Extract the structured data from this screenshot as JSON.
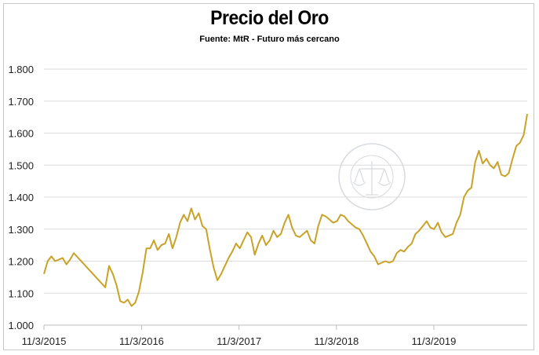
{
  "chart_data": {
    "type": "line",
    "title": "Precio del Oro",
    "subtitle": "Fuente: MtR - Futuro más cercano",
    "xlabel": "",
    "ylabel": "",
    "ylim": [
      1000,
      1800
    ],
    "yticks": [
      1000,
      1100,
      1200,
      1300,
      1400,
      1500,
      1600,
      1700,
      1800
    ],
    "ytick_labels": [
      "1.000",
      "1.100",
      "1.200",
      "1.300",
      "1.400",
      "1.500",
      "1.600",
      "1.700",
      "1.800"
    ],
    "xticks": [
      "2015-03-11",
      "2016-03-11",
      "2017-03-11",
      "2018-03-11",
      "2019-03-11"
    ],
    "xtick_labels": [
      "11/3/2015",
      "11/3/2016",
      "11/3/2017",
      "11/3/2018",
      "11/3/2019"
    ],
    "xlim": [
      "2015-03-11",
      "2020-02-24"
    ],
    "grid": "horizontal",
    "line_color": "#c9a227",
    "series": [
      {
        "x": [
          "2015-03-11",
          "2015-03-25",
          "2015-04-08",
          "2015-04-22",
          "2015-05-06",
          "2015-05-20",
          "2015-06-03",
          "2015-06-17",
          "2015-07-01",
          "2015-10-27",
          "2015-11-10",
          "2015-11-24",
          "2015-12-08",
          "2015-12-22",
          "2016-01-05",
          "2016-01-19",
          "2016-02-02",
          "2016-02-16",
          "2016-03-01",
          "2016-03-15",
          "2016-03-29",
          "2016-04-12",
          "2016-04-26",
          "2016-05-10",
          "2016-05-24",
          "2016-06-07",
          "2016-06-21",
          "2016-07-05",
          "2016-07-19",
          "2016-08-02",
          "2016-08-16",
          "2016-08-30",
          "2016-09-13",
          "2016-09-27",
          "2016-10-11",
          "2016-10-25",
          "2016-11-08",
          "2016-11-22",
          "2016-12-06",
          "2016-12-20",
          "2017-01-03",
          "2017-01-17",
          "2017-01-31",
          "2017-02-14",
          "2017-02-28",
          "2017-03-14",
          "2017-03-28",
          "2017-04-11",
          "2017-04-25",
          "2017-05-09",
          "2017-05-23",
          "2017-06-06",
          "2017-06-20",
          "2017-07-04",
          "2017-07-18",
          "2017-08-01",
          "2017-08-15",
          "2017-08-29",
          "2017-09-12",
          "2017-09-26",
          "2017-10-10",
          "2017-10-24",
          "2017-11-07",
          "2017-11-21",
          "2017-12-05",
          "2017-12-19",
          "2018-01-02",
          "2018-01-16",
          "2018-01-30",
          "2018-02-13",
          "2018-02-27",
          "2018-03-13",
          "2018-03-27",
          "2018-04-10",
          "2018-04-24",
          "2018-05-08",
          "2018-05-22",
          "2018-06-05",
          "2018-06-19",
          "2018-07-03",
          "2018-07-17",
          "2018-07-31",
          "2018-08-14",
          "2018-08-28",
          "2018-09-11",
          "2018-09-25",
          "2018-10-09",
          "2018-10-23",
          "2018-11-06",
          "2018-11-20",
          "2018-12-04",
          "2018-12-18",
          "2019-01-01",
          "2019-01-15",
          "2019-01-29",
          "2019-02-12",
          "2019-02-26",
          "2019-03-12",
          "2019-03-26",
          "2019-04-09",
          "2019-04-23",
          "2019-05-07",
          "2019-05-21",
          "2019-06-04",
          "2019-06-18",
          "2019-07-02",
          "2019-07-16",
          "2019-07-30",
          "2019-08-13",
          "2019-08-27",
          "2019-09-10",
          "2019-09-24",
          "2019-10-08",
          "2019-10-22",
          "2019-11-05",
          "2019-11-19",
          "2019-12-03",
          "2019-12-17",
          "2019-12-31",
          "2020-01-14",
          "2020-01-28",
          "2020-02-11",
          "2020-02-24"
        ],
        "values": [
          1160,
          1200,
          1215,
          1200,
          1205,
          1210,
          1190,
          1205,
          1225,
          1118,
          1185,
          1160,
          1125,
          1075,
          1070,
          1080,
          1060,
          1070,
          1105,
          1165,
          1240,
          1240,
          1265,
          1235,
          1250,
          1255,
          1285,
          1240,
          1275,
          1320,
          1345,
          1325,
          1365,
          1330,
          1350,
          1310,
          1300,
          1235,
          1180,
          1140,
          1160,
          1185,
          1210,
          1230,
          1255,
          1240,
          1265,
          1290,
          1275,
          1220,
          1255,
          1280,
          1250,
          1265,
          1295,
          1275,
          1285,
          1320,
          1345,
          1305,
          1280,
          1275,
          1285,
          1295,
          1265,
          1255,
          1310,
          1345,
          1340,
          1330,
          1320,
          1325,
          1345,
          1340,
          1325,
          1315,
          1305,
          1300,
          1280,
          1255,
          1230,
          1215,
          1190,
          1195,
          1200,
          1195,
          1200,
          1225,
          1235,
          1230,
          1245,
          1255,
          1285,
          1295,
          1310,
          1325,
          1305,
          1300,
          1320,
          1290,
          1275,
          1280,
          1285,
          1320,
          1345,
          1400,
          1420,
          1430,
          1510,
          1545,
          1505,
          1520,
          1500,
          1490,
          1510,
          1470,
          1465,
          1475,
          1520,
          1560,
          1570,
          1595,
          1660
        ]
      }
    ]
  }
}
